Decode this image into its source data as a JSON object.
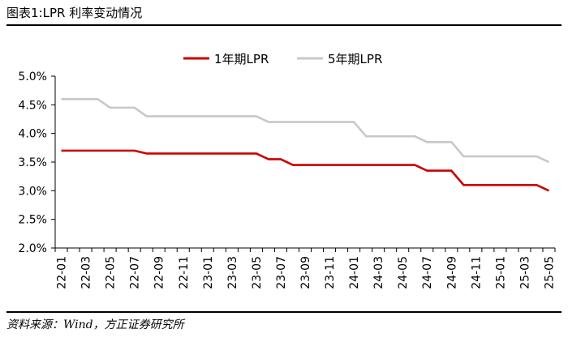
{
  "header": {
    "title": "图表1:LPR 利率变动情况"
  },
  "footer": {
    "source": "资料来源：Wind，方正证券研究所"
  },
  "chart_data": {
    "type": "line",
    "title": "",
    "xlabel": "",
    "ylabel": "",
    "ylim": [
      2.0,
      5.0
    ],
    "y_ticks": [
      "2.0%",
      "2.5%",
      "3.0%",
      "3.5%",
      "4.0%",
      "4.5%",
      "5.0%"
    ],
    "x_tick_labels": [
      "22-01",
      "22-03",
      "22-05",
      "22-07",
      "22-09",
      "22-11",
      "23-01",
      "23-03",
      "23-05",
      "23-07",
      "23-09",
      "23-11",
      "24-01",
      "24-03",
      "24-05",
      "24-07",
      "24-09",
      "24-11",
      "25-01",
      "25-03",
      "25-05"
    ],
    "legend_position": "top",
    "grid": false,
    "x": [
      "22-01",
      "22-02",
      "22-03",
      "22-04",
      "22-05",
      "22-06",
      "22-07",
      "22-08",
      "22-09",
      "22-10",
      "22-11",
      "22-12",
      "23-01",
      "23-02",
      "23-03",
      "23-04",
      "23-05",
      "23-06",
      "23-07",
      "23-08",
      "23-09",
      "23-10",
      "23-11",
      "23-12",
      "24-01",
      "24-02",
      "24-03",
      "24-04",
      "24-05",
      "24-06",
      "24-07",
      "24-08",
      "24-09",
      "24-10",
      "24-11",
      "24-12",
      "25-01",
      "25-02",
      "25-03",
      "25-04",
      "25-05"
    ],
    "series": [
      {
        "name": "1年期LPR",
        "color": "#cc0000",
        "values": [
          3.7,
          3.7,
          3.7,
          3.7,
          3.7,
          3.7,
          3.7,
          3.65,
          3.65,
          3.65,
          3.65,
          3.65,
          3.65,
          3.65,
          3.65,
          3.65,
          3.65,
          3.55,
          3.55,
          3.45,
          3.45,
          3.45,
          3.45,
          3.45,
          3.45,
          3.45,
          3.45,
          3.45,
          3.45,
          3.45,
          3.35,
          3.35,
          3.35,
          3.1,
          3.1,
          3.1,
          3.1,
          3.1,
          3.1,
          3.1,
          3.0
        ]
      },
      {
        "name": "5年期LPR",
        "color": "#c8c8c8",
        "values": [
          4.6,
          4.6,
          4.6,
          4.6,
          4.45,
          4.45,
          4.45,
          4.3,
          4.3,
          4.3,
          4.3,
          4.3,
          4.3,
          4.3,
          4.3,
          4.3,
          4.3,
          4.2,
          4.2,
          4.2,
          4.2,
          4.2,
          4.2,
          4.2,
          4.2,
          3.95,
          3.95,
          3.95,
          3.95,
          3.95,
          3.85,
          3.85,
          3.85,
          3.6,
          3.6,
          3.6,
          3.6,
          3.6,
          3.6,
          3.6,
          3.5
        ]
      }
    ]
  }
}
